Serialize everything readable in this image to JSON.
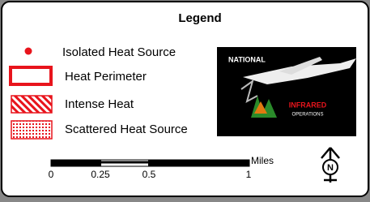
{
  "legend": {
    "title": "Legend",
    "items": [
      {
        "label": "Isolated Heat Source"
      },
      {
        "label": "Heat Perimeter"
      },
      {
        "label": "Intense Heat"
      },
      {
        "label": "Scattered Heat Source"
      }
    ],
    "logo": {
      "line1": "NATIONAL",
      "line2": "INFRARED",
      "line3": "OPERATIONS"
    },
    "scale_bar": {
      "unit": "Miles",
      "labels": [
        "0",
        "0.25",
        "0.5",
        "1"
      ]
    },
    "north_arrow": {
      "label": "N"
    }
  }
}
